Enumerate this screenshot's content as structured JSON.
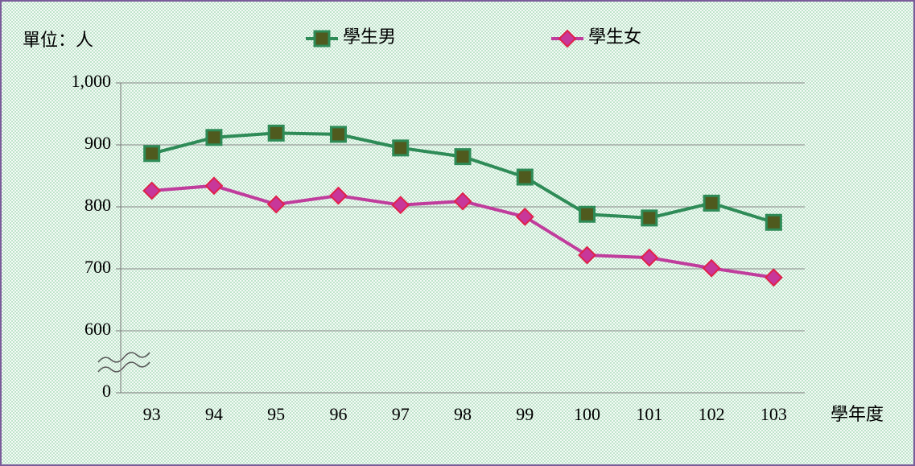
{
  "chart_data": {
    "type": "line",
    "unit_label": "單位：人",
    "x_label": "學年度",
    "categories": [
      "93",
      "94",
      "95",
      "96",
      "97",
      "98",
      "99",
      "100",
      "101",
      "102",
      "103"
    ],
    "series": [
      {
        "name": "學生男",
        "color": "#2e8b57",
        "marker_fill": "#4f5a1e",
        "marker": "square",
        "values": [
          886,
          912,
          919,
          917,
          895,
          881,
          848,
          788,
          782,
          806,
          775
        ]
      },
      {
        "name": "學生女",
        "color": "#c03c9c",
        "marker_fill": "#c8379a",
        "marker_stroke": "#e0204a",
        "marker": "diamond",
        "values": [
          826,
          834,
          804,
          818,
          803,
          809,
          784,
          722,
          718,
          701,
          686
        ]
      }
    ],
    "ylim": [
      0,
      1000
    ],
    "yticks": [
      0,
      600,
      700,
      800,
      900,
      {
        "value": 1000,
        "label": "1,000"
      }
    ],
    "grid": true
  }
}
